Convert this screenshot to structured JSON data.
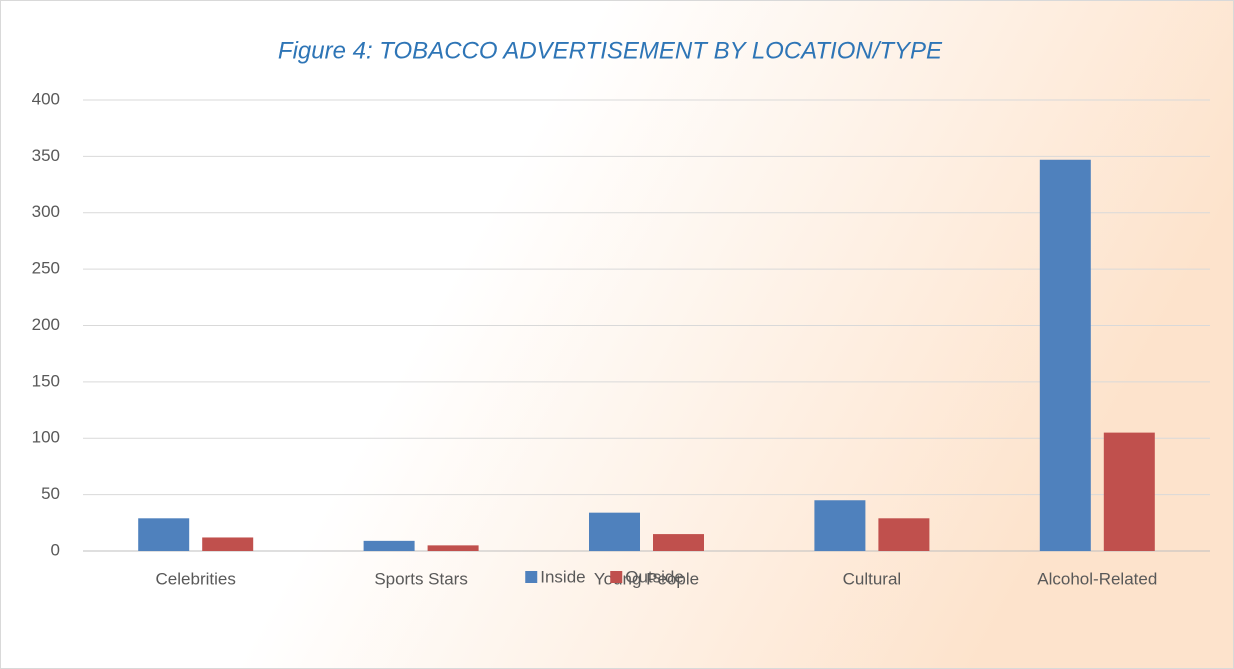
{
  "chart_data": {
    "type": "bar",
    "title": "Figure 4: TOBACCO ADVERTISEMENT BY LOCATION/TYPE",
    "categories": [
      "Celebrities",
      "Sports Stars",
      "Young People",
      "Cultural",
      "Alcohol-Related"
    ],
    "series": [
      {
        "name": "Inside",
        "color": "#4f81bd",
        "values": [
          29,
          9,
          34,
          45,
          347
        ]
      },
      {
        "name": "Outside",
        "color": "#c0504d",
        "values": [
          12,
          5,
          15,
          29,
          105
        ]
      }
    ],
    "ylim": [
      0,
      400
    ],
    "yticks": [
      0,
      50,
      100,
      150,
      200,
      250,
      300,
      350,
      400
    ],
    "grid": true,
    "legend": "bottom"
  }
}
